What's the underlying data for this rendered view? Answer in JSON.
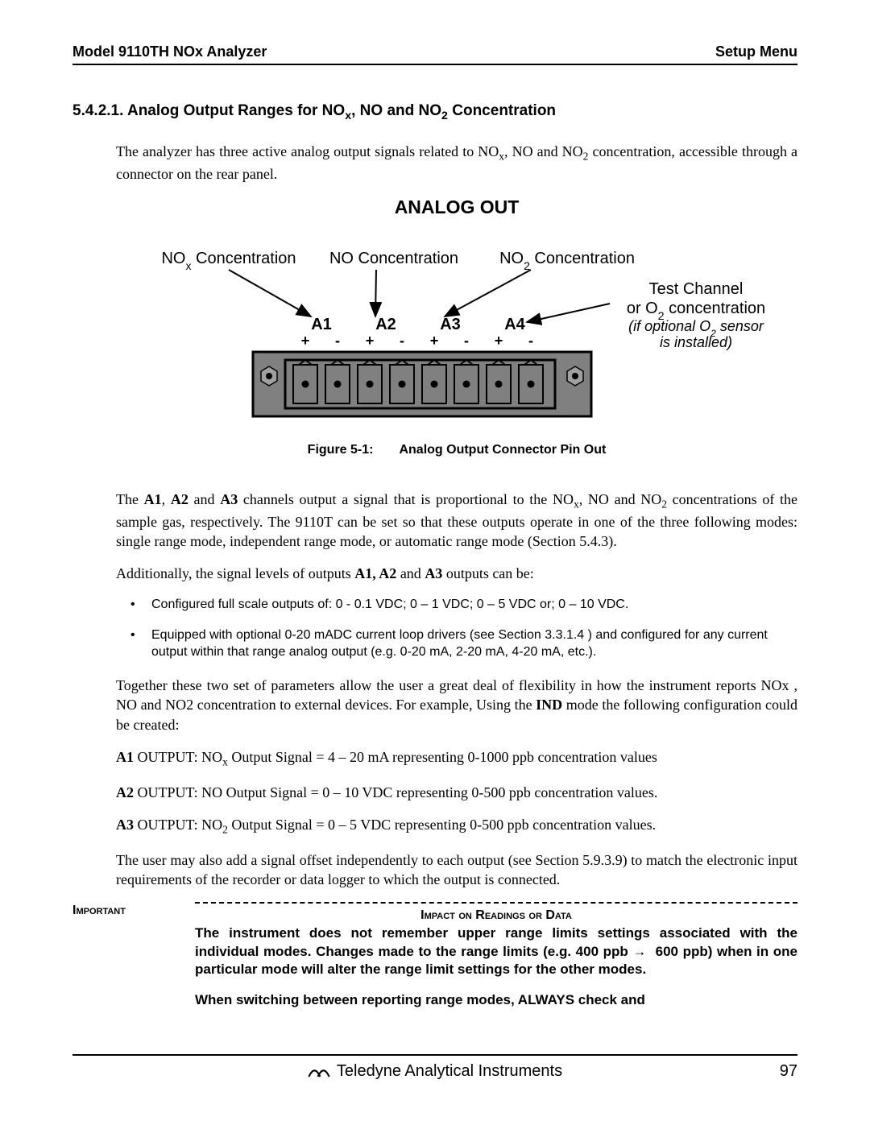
{
  "header": {
    "left": "Model 9110TH NOx Analyzer",
    "right": "Setup Menu"
  },
  "section": {
    "number": "5.4.2.1.",
    "title_html": "Analog Output Ranges for NO<sub>x</sub>, NO and NO<sub>2</sub> Concentration"
  },
  "intro_html": "The analyzer has three active analog output signals related to NO<sub>x</sub>, NO and NO<sub>2</sub> concentration, accessible through a connector on the rear panel.",
  "figure": {
    "title": "ANALOG OUT",
    "caption": "Figure 5-1:  Analog Output Connector Pin Out",
    "labels": {
      "nox": "NO<sub>x</sub> Concentration",
      "no": "NO Concentration",
      "no2": "NO<sub>2</sub> Concentration",
      "tc_line1": "Test Channel",
      "tc_line2": "or O<sub>2</sub> concentration",
      "tc_line3_html": "<i>(if optional O<sub>2</sub> sensor</i>",
      "tc_line4_html": "<i>is installed)</i>",
      "a1": "A1",
      "a2": "A2",
      "a3": "A3",
      "a4": "A4",
      "polarity": [
        "+",
        "-",
        "+",
        "-",
        "+",
        "-",
        "+",
        "-"
      ]
    },
    "style": {
      "connector_fill": "#808080",
      "connector_stroke": "#000000",
      "pin_fill": "#808080",
      "pin_hole_fill": "#000000",
      "screw_fill": "#a0a0a0",
      "arrow_stroke": "#000000",
      "arrow_width": 2,
      "font_family": "Arial, Helvetica, sans-serif",
      "label_fontsize": 20,
      "channel_fontsize": 20,
      "polarity_fontsize": 18
    }
  },
  "para2_html": "The <b>A1</b>, <b>A2</b> and <b>A3</b> channels output a signal that is proportional to the NO<sub>x</sub>, NO and NO<sub>2</sub> concentrations of the sample gas, respectively.  The 9110T can be set so that these outputs operate in one of the three following modes: single range mode, independent range mode, or automatic range mode (Section 5.4.3).",
  "para3_html": "Additionally, the signal levels of outputs <b>A1, A2</b> and <b>A3</b> outputs can be:",
  "bullets": [
    "Configured full scale outputs of: 0 - 0.1 VDC; 0 – 1 VDC; 0 – 5 VDC or; 0 – 10 VDC.",
    "Equipped with optional 0-20 mADC current loop drivers (see Section 3.3.1.4 ) and configured for any current output within that range analog output (e.g.  0-20 mA, 2-20 mA, 4-20 mA, etc.)."
  ],
  "para4_html": "Together these two set of parameters allow the user a great deal of flexibility in how the instrument reports NOx , NO and NO2 concentration to external devices.  For example, Using the <b>IND</b> mode the following configuration could be created:",
  "outputs": [
    "<b>A1</b> OUTPUT:  NO<sub>x</sub> Output Signal =  4 – 20 mA representing 0-1000 ppb concentration values",
    "<b>A2</b> OUTPUT:  NO Output Signal = 0 – 10 VDC representing 0-500 ppb concentration values.",
    "<b>A3</b> OUTPUT:  NO<sub>2</sub> Output Signal = 0 – 5 VDC representing 0-500 ppb concentration values."
  ],
  "para5": "The user may also add a signal offset independently to each output (see Section 5.9.3.9) to match the electronic input requirements of the recorder or data logger to which the output is connected.",
  "important": {
    "label": "Important",
    "heading": "Impact on Readings or Data",
    "body1_html": "The instrument does not remember upper range limits settings associated with the individual modes. Changes made to the range limits (e.g. 400 ppb &rarr;&nbsp; 600 ppb) when in one particular mode will alter the range limit  settings for the other modes.",
    "body2": "When switching between reporting range modes, ALWAYS check and"
  },
  "footer": {
    "company": "Teledyne Analytical Instruments",
    "page": "97"
  }
}
